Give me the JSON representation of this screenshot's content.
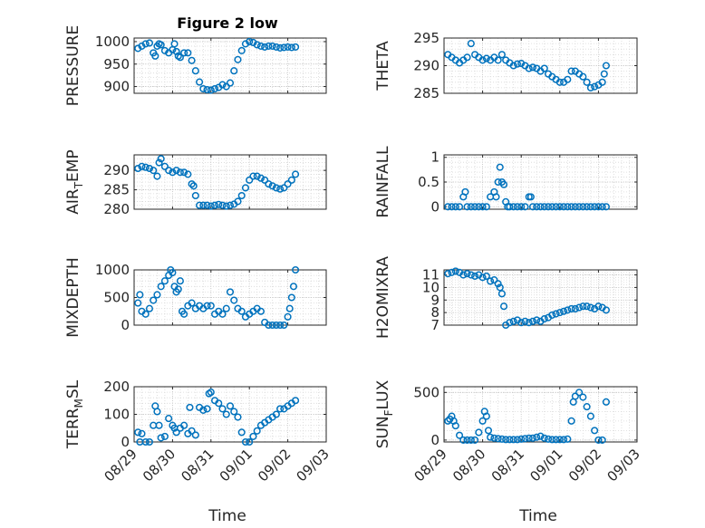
{
  "figure": {
    "title": "Figure 2 low",
    "marker_color": "#0072BD"
  },
  "chart_data": [
    {
      "type": "scatter",
      "title": "Figure 2 low",
      "ylabel": "PRESSURE",
      "ylim": [
        885,
        1008
      ],
      "yticks": [
        900,
        950,
        1000
      ],
      "xticks": [
        "08/29",
        "08/30",
        "08/31",
        "09/01",
        "09/02",
        "09/03"
      ],
      "xlim": [
        0,
        5
      ],
      "grid": "major and minor dotted",
      "x": [
        0.1,
        0.2,
        0.3,
        0.4,
        0.5,
        0.55,
        0.6,
        0.65,
        0.7,
        0.8,
        0.9,
        1.0,
        1.05,
        1.1,
        1.15,
        1.2,
        1.3,
        1.4,
        1.5,
        1.6,
        1.7,
        1.8,
        1.9,
        2.0,
        2.1,
        2.2,
        2.3,
        2.4,
        2.5,
        2.6,
        2.7,
        2.8,
        2.9,
        3.0,
        3.1,
        3.2,
        3.3,
        3.4,
        3.5,
        3.6,
        3.7,
        3.8,
        3.9,
        4.0,
        4.1,
        4.2
      ],
      "y": [
        985,
        990,
        995,
        997,
        975,
        968,
        990,
        995,
        993,
        980,
        975,
        982,
        995,
        978,
        968,
        965,
        975,
        975,
        958,
        935,
        910,
        895,
        893,
        892,
        895,
        898,
        904,
        900,
        908,
        935,
        960,
        980,
        995,
        1000,
        998,
        993,
        990,
        988,
        990,
        990,
        988,
        986,
        987,
        988,
        987,
        988
      ],
      "ylabel_sub": ""
    },
    {
      "type": "scatter",
      "ylabel": "THETA",
      "ylim": [
        285,
        295
      ],
      "yticks": [
        285,
        290,
        295
      ],
      "xticks": [
        "08/29",
        "08/30",
        "08/31",
        "09/01",
        "09/02",
        "09/03"
      ],
      "xlim": [
        0,
        5
      ],
      "grid": "major and minor dotted",
      "x": [
        0.1,
        0.2,
        0.3,
        0.4,
        0.5,
        0.6,
        0.7,
        0.8,
        0.9,
        1.0,
        1.1,
        1.2,
        1.3,
        1.4,
        1.5,
        1.6,
        1.7,
        1.8,
        1.9,
        2.0,
        2.1,
        2.2,
        2.3,
        2.4,
        2.5,
        2.6,
        2.7,
        2.8,
        2.9,
        3.0,
        3.1,
        3.2,
        3.3,
        3.4,
        3.5,
        3.6,
        3.7,
        3.8,
        3.9,
        4.0,
        4.1,
        4.15,
        4.2
      ],
      "y": [
        292,
        291.5,
        291,
        290.5,
        291,
        291.5,
        294,
        292,
        291.5,
        291,
        291.3,
        291,
        291.5,
        291,
        292,
        291,
        290.5,
        290,
        290.3,
        290.4,
        290,
        289.5,
        289.7,
        289.5,
        289,
        289.5,
        288.5,
        288,
        287.5,
        287,
        287,
        287.5,
        289,
        289,
        288.5,
        288,
        287,
        286,
        286.2,
        286.5,
        287,
        288.5,
        290
      ]
    },
    {
      "type": "scatter",
      "ylabel": "AIR",
      "ylabel_sub": "T",
      "ylabel_rest": "EMP",
      "ylim": [
        280,
        294
      ],
      "yticks": [
        280,
        285,
        290
      ],
      "xticks": [
        "08/29",
        "08/30",
        "08/31",
        "09/01",
        "09/02",
        "09/03"
      ],
      "xlim": [
        0,
        5
      ],
      "grid": "major and minor dotted",
      "x": [
        0.1,
        0.2,
        0.3,
        0.4,
        0.5,
        0.6,
        0.65,
        0.7,
        0.8,
        0.9,
        1.0,
        1.1,
        1.2,
        1.3,
        1.4,
        1.5,
        1.55,
        1.6,
        1.7,
        1.8,
        1.9,
        2.0,
        2.1,
        2.2,
        2.3,
        2.4,
        2.5,
        2.6,
        2.7,
        2.8,
        2.9,
        3.0,
        3.1,
        3.2,
        3.3,
        3.4,
        3.5,
        3.6,
        3.7,
        3.8,
        3.9,
        4.0,
        4.1,
        4.2
      ],
      "y": [
        290.5,
        291,
        290.8,
        290.5,
        290,
        288.5,
        292,
        293,
        291,
        290,
        289.5,
        290,
        289.5,
        289.5,
        289,
        286.5,
        286,
        283.5,
        281,
        281,
        281,
        280.8,
        281,
        281.2,
        281,
        280.8,
        281,
        281.3,
        282,
        283.5,
        285.5,
        287.5,
        288.5,
        288.5,
        288,
        287.5,
        286.5,
        286,
        285.5,
        285.2,
        285.5,
        286.5,
        287.5,
        289
      ]
    },
    {
      "type": "scatter",
      "ylabel": "RAINFALL",
      "ylim": [
        -0.05,
        1.05
      ],
      "yticks": [
        0,
        0.5,
        1
      ],
      "yticklabels": [
        "0",
        "0.5",
        "1"
      ],
      "xticks": [
        "08/29",
        "08/30",
        "08/31",
        "09/01",
        "09/02",
        "09/03"
      ],
      "xlim": [
        0,
        5
      ],
      "grid": "major and minor dotted",
      "x": [
        0.1,
        0.2,
        0.3,
        0.4,
        0.5,
        0.55,
        0.6,
        0.7,
        0.8,
        0.9,
        1.0,
        1.1,
        1.2,
        1.3,
        1.35,
        1.4,
        1.45,
        1.5,
        1.55,
        1.6,
        1.65,
        1.7,
        1.8,
        1.9,
        2.0,
        2.1,
        2.2,
        2.25,
        2.3,
        2.4,
        2.5,
        2.6,
        2.7,
        2.8,
        2.9,
        3.0,
        3.1,
        3.2,
        3.3,
        3.4,
        3.5,
        3.6,
        3.7,
        3.8,
        3.9,
        4.0,
        4.1,
        4.2
      ],
      "y": [
        0,
        0,
        0,
        0,
        0.2,
        0.3,
        0,
        0,
        0,
        0,
        0,
        0,
        0.2,
        0.3,
        0.2,
        0.5,
        0.8,
        0.5,
        0.45,
        0.1,
        0,
        0,
        0,
        0,
        0,
        0,
        0.2,
        0.2,
        0,
        0,
        0,
        0,
        0,
        0,
        0,
        0,
        0,
        0,
        0,
        0,
        0,
        0,
        0,
        0,
        0,
        0,
        0,
        0
      ]
    },
    {
      "type": "scatter",
      "ylabel": "MIXDEPTH",
      "ylim": [
        0,
        1000
      ],
      "yticks": [
        0,
        500,
        1000
      ],
      "xticks": [
        "08/29",
        "08/30",
        "08/31",
        "09/01",
        "09/02",
        "09/03"
      ],
      "xlim": [
        0,
        5
      ],
      "grid": "major and minor dotted",
      "x": [
        0.1,
        0.15,
        0.2,
        0.3,
        0.4,
        0.5,
        0.6,
        0.7,
        0.8,
        0.9,
        0.95,
        1.0,
        1.05,
        1.1,
        1.15,
        1.2,
        1.25,
        1.3,
        1.4,
        1.5,
        1.6,
        1.7,
        1.8,
        1.9,
        2.0,
        2.1,
        2.2,
        2.3,
        2.4,
        2.5,
        2.6,
        2.7,
        2.8,
        2.9,
        3.0,
        3.1,
        3.2,
        3.3,
        3.4,
        3.5,
        3.6,
        3.7,
        3.8,
        3.9,
        4.0,
        4.05,
        4.1,
        4.15,
        4.2
      ],
      "y": [
        400,
        550,
        250,
        200,
        300,
        450,
        550,
        700,
        800,
        900,
        1000,
        950,
        700,
        600,
        650,
        800,
        250,
        200,
        350,
        400,
        300,
        350,
        300,
        350,
        350,
        200,
        250,
        200,
        300,
        600,
        450,
        300,
        250,
        150,
        200,
        250,
        300,
        250,
        50,
        0,
        0,
        0,
        0,
        0,
        150,
        300,
        500,
        700,
        1000
      ]
    },
    {
      "type": "scatter",
      "ylabel": "H2OMIXRA",
      "ylim": [
        7,
        11.4
      ],
      "yticks": [
        7,
        8,
        9,
        10,
        11
      ],
      "xticks": [
        "08/29",
        "08/30",
        "08/31",
        "09/01",
        "09/02",
        "09/03"
      ],
      "xlim": [
        0,
        5
      ],
      "grid": "major and minor dotted",
      "x": [
        0.1,
        0.2,
        0.3,
        0.4,
        0.5,
        0.6,
        0.7,
        0.8,
        0.9,
        1.0,
        1.1,
        1.2,
        1.3,
        1.4,
        1.45,
        1.5,
        1.55,
        1.6,
        1.7,
        1.8,
        1.9,
        2.0,
        2.1,
        2.2,
        2.3,
        2.4,
        2.5,
        2.6,
        2.7,
        2.8,
        2.9,
        3.0,
        3.1,
        3.2,
        3.3,
        3.4,
        3.5,
        3.6,
        3.7,
        3.8,
        3.9,
        4.0,
        4.1,
        4.2
      ],
      "y": [
        11.1,
        11.2,
        11.3,
        11.2,
        11.0,
        11.1,
        11.0,
        10.9,
        11.0,
        10.8,
        10.9,
        10.5,
        10.6,
        10.3,
        10.0,
        9.5,
        8.5,
        7.0,
        7.2,
        7.3,
        7.4,
        7.2,
        7.3,
        7.2,
        7.3,
        7.4,
        7.3,
        7.5,
        7.6,
        7.8,
        7.9,
        8.0,
        8.1,
        8.2,
        8.3,
        8.3,
        8.4,
        8.5,
        8.5,
        8.4,
        8.3,
        8.5,
        8.4,
        8.2
      ]
    },
    {
      "type": "scatter",
      "ylabel": "TERR",
      "ylabel_sub": "M",
      "ylabel_rest": "SL",
      "ylim": [
        0,
        200
      ],
      "yticks": [
        0,
        100,
        200
      ],
      "xticks": [
        "08/29",
        "08/30",
        "08/31",
        "09/01",
        "09/02",
        "09/03"
      ],
      "xlim": [
        0,
        5
      ],
      "grid": "major and minor dotted",
      "x": [
        0.1,
        0.15,
        0.2,
        0.3,
        0.4,
        0.5,
        0.55,
        0.6,
        0.65,
        0.7,
        0.8,
        0.9,
        1.0,
        1.05,
        1.1,
        1.2,
        1.3,
        1.4,
        1.45,
        1.5,
        1.6,
        1.7,
        1.8,
        1.9,
        1.95,
        2.0,
        2.1,
        2.2,
        2.3,
        2.4,
        2.5,
        2.6,
        2.7,
        2.8,
        2.9,
        3.0,
        3.1,
        3.2,
        3.3,
        3.4,
        3.5,
        3.6,
        3.7,
        3.8,
        3.9,
        4.0,
        4.1,
        4.2
      ],
      "y": [
        35,
        0,
        30,
        0,
        0,
        60,
        130,
        110,
        60,
        15,
        20,
        85,
        60,
        50,
        35,
        50,
        60,
        30,
        125,
        40,
        25,
        125,
        115,
        120,
        175,
        180,
        150,
        140,
        120,
        100,
        130,
        110,
        90,
        35,
        0,
        0,
        20,
        40,
        60,
        70,
        80,
        90,
        100,
        120,
        120,
        130,
        140,
        150
      ]
    },
    {
      "type": "scatter",
      "ylabel": "SUN",
      "ylabel_sub": "F",
      "ylabel_rest": "LUX",
      "ylim": [
        -20,
        560
      ],
      "yticks": [
        0,
        500
      ],
      "xticks": [
        "08/29",
        "08/30",
        "08/31",
        "09/01",
        "09/02",
        "09/03"
      ],
      "xlim": [
        0,
        5
      ],
      "grid": "major and minor dotted",
      "x": [
        0.1,
        0.15,
        0.2,
        0.25,
        0.3,
        0.4,
        0.5,
        0.6,
        0.7,
        0.8,
        0.9,
        1.0,
        1.05,
        1.1,
        1.15,
        1.2,
        1.3,
        1.4,
        1.5,
        1.6,
        1.7,
        1.8,
        1.9,
        2.0,
        2.1,
        2.2,
        2.3,
        2.4,
        2.5,
        2.6,
        2.7,
        2.8,
        2.9,
        3.0,
        3.1,
        3.2,
        3.3,
        3.35,
        3.4,
        3.5,
        3.6,
        3.7,
        3.8,
        3.9,
        4.0,
        4.1,
        4.2
      ],
      "y": [
        200,
        220,
        250,
        200,
        150,
        50,
        0,
        0,
        0,
        0,
        80,
        200,
        300,
        250,
        100,
        30,
        20,
        15,
        10,
        5,
        5,
        5,
        5,
        10,
        15,
        20,
        20,
        30,
        40,
        20,
        10,
        5,
        5,
        5,
        5,
        10,
        200,
        400,
        460,
        500,
        450,
        350,
        250,
        100,
        0,
        0,
        400
      ]
    }
  ],
  "shared": {
    "xlabel": "Time"
  }
}
